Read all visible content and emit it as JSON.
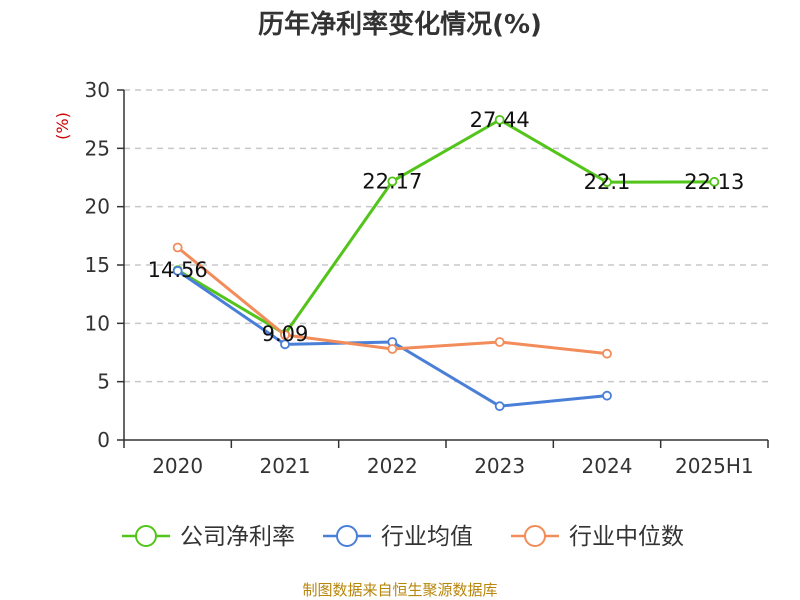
{
  "chart_data": {
    "type": "line",
    "title": "历年净利率变化情况(%)",
    "ylabel": "(%)",
    "categories": [
      "2020",
      "2021",
      "2022",
      "2023",
      "2024",
      "2025H1"
    ],
    "ylim": [
      0,
      30
    ],
    "yticks": [
      0,
      5,
      10,
      15,
      20,
      25,
      30
    ],
    "grid": true,
    "legend_position": "bottom",
    "series": [
      {
        "name": "公司净利率",
        "color": "#52c41a",
        "values": [
          14.56,
          9.09,
          22.17,
          27.44,
          22.1,
          22.13
        ],
        "labels": [
          "14.56",
          "9.09",
          "22.17",
          "27.44",
          "22.1",
          "22.13"
        ]
      },
      {
        "name": "行业均值",
        "color": "#4a7fd8",
        "values": [
          14.5,
          8.2,
          8.4,
          2.9,
          3.8,
          null
        ]
      },
      {
        "name": "行业中位数",
        "color": "#f28c5a",
        "values": [
          16.5,
          9.0,
          7.8,
          8.4,
          7.4,
          null
        ]
      }
    ]
  },
  "source": "制图数据来自恒生聚源数据库"
}
